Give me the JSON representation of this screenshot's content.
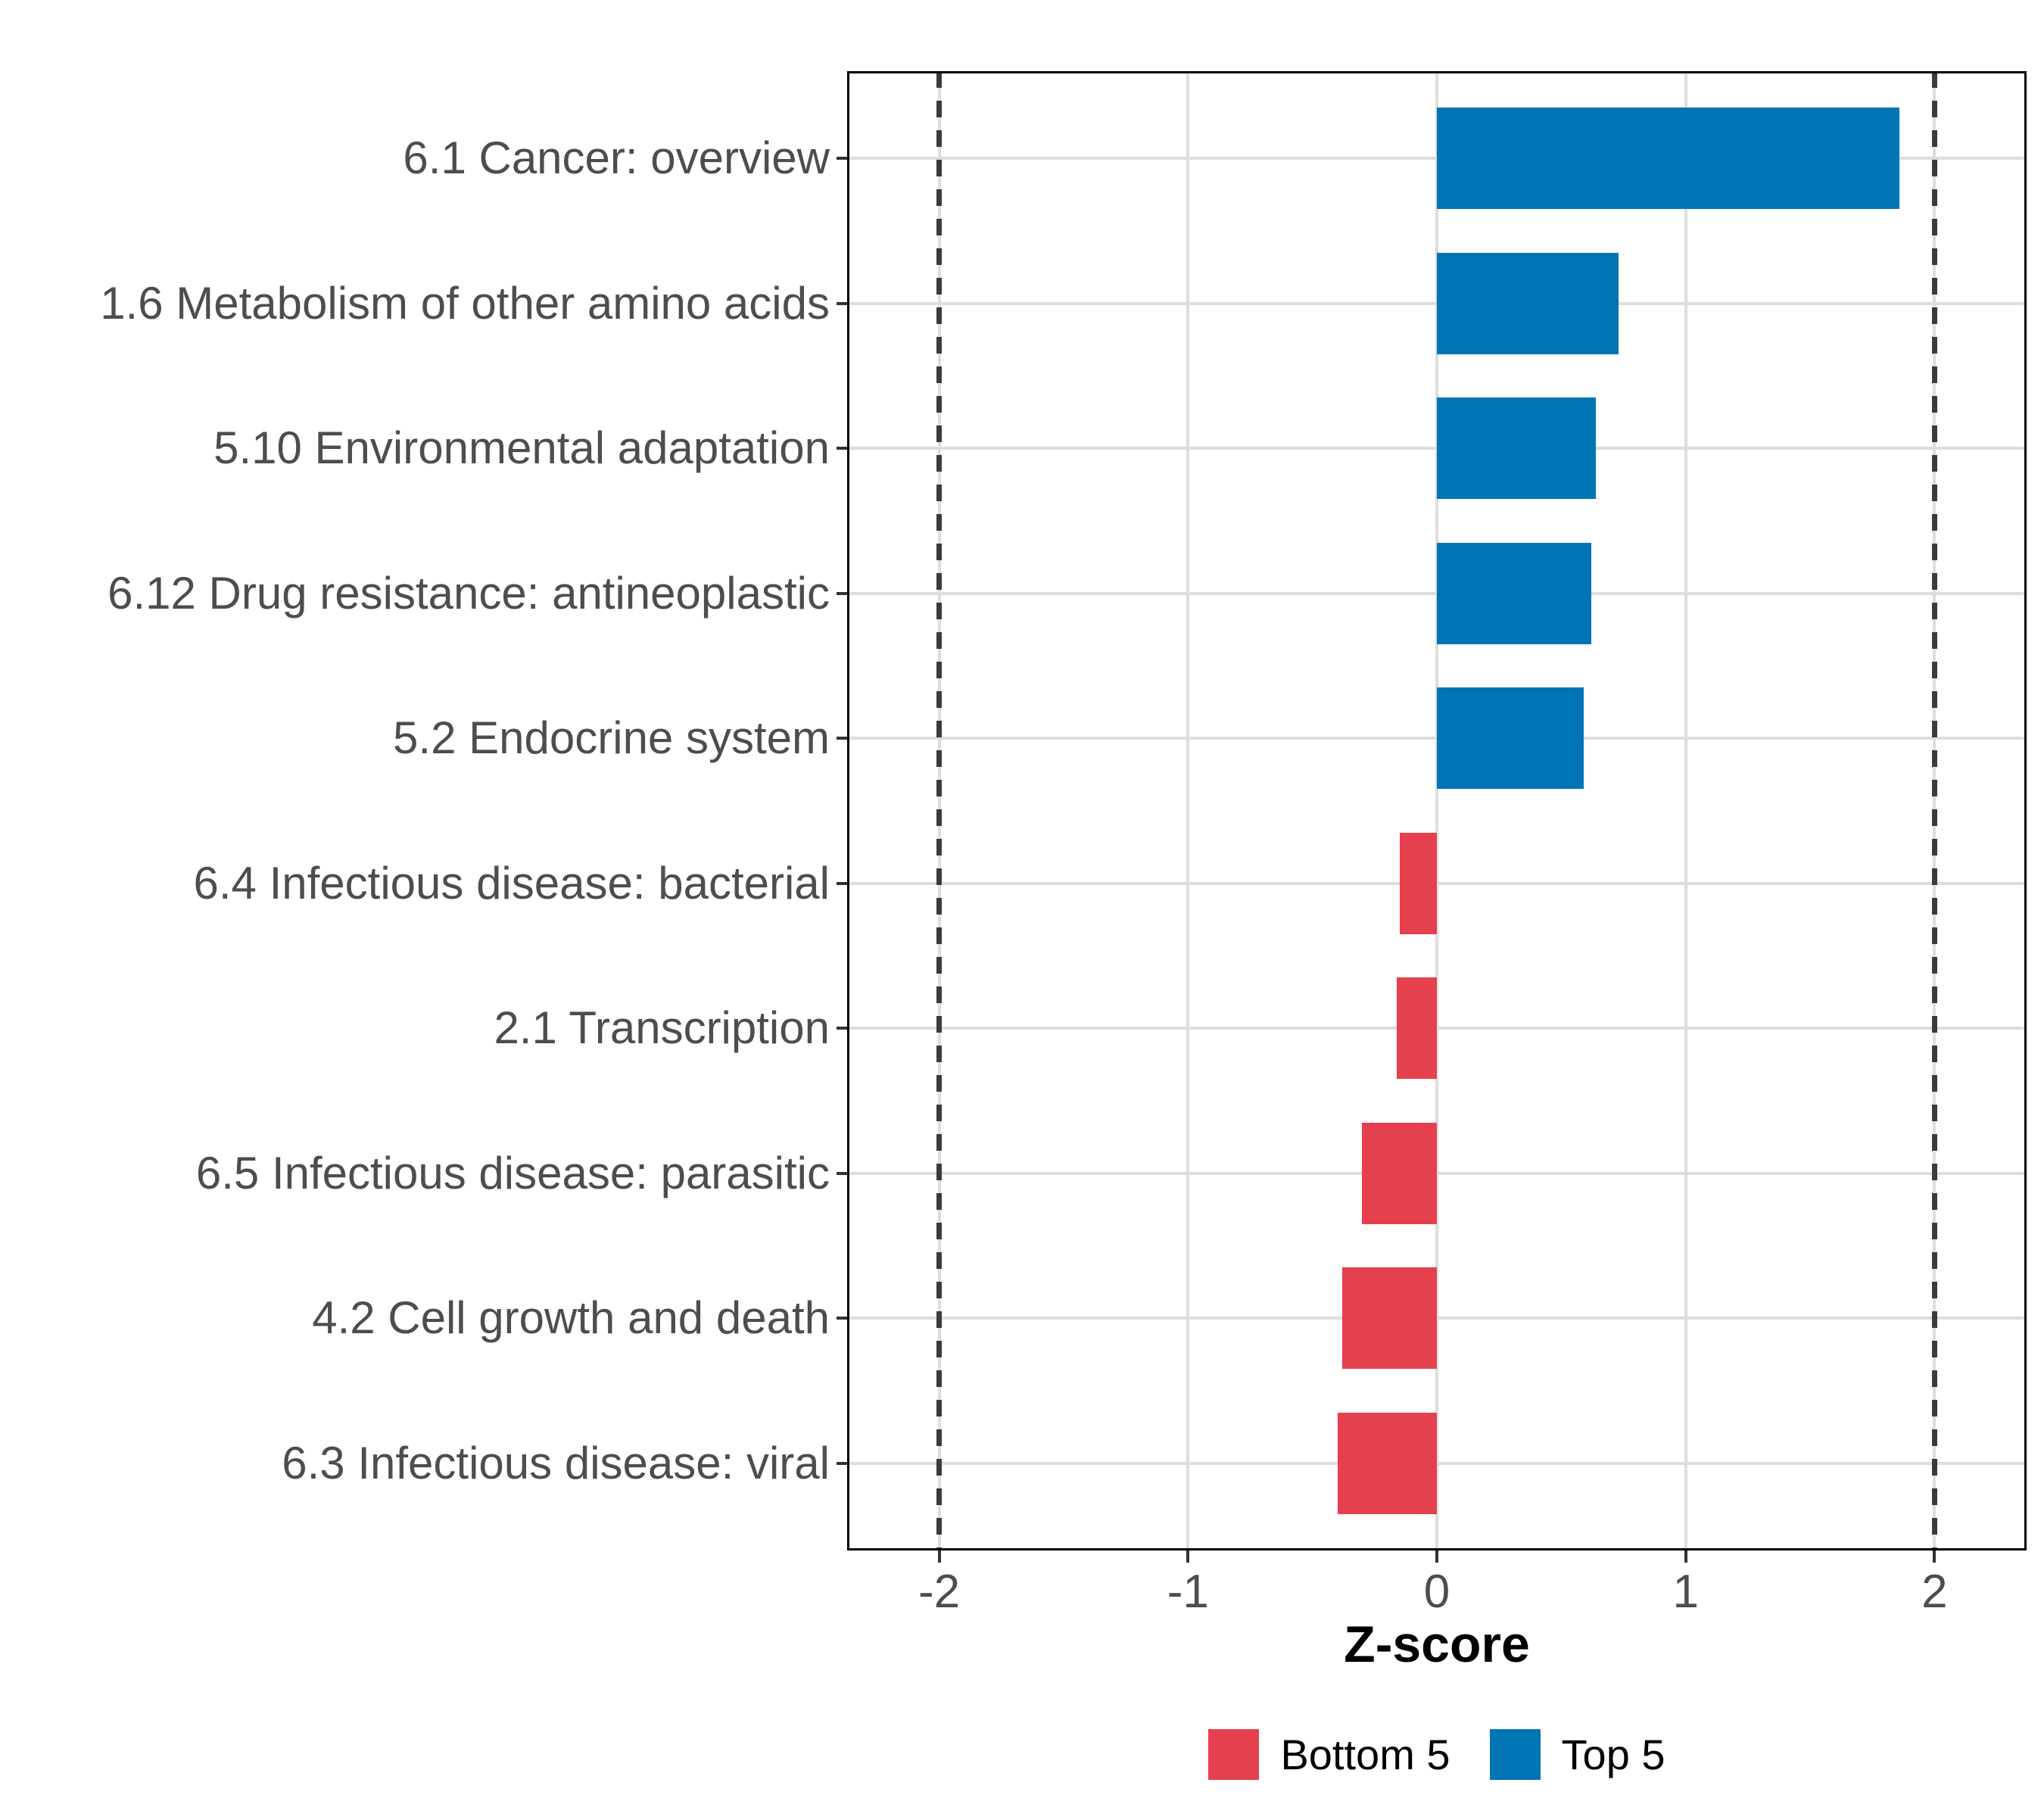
{
  "chart_data": {
    "type": "bar",
    "orientation": "horizontal",
    "title": "",
    "xlabel": "Z-score",
    "ylabel": "",
    "categories": [
      "6.1 Cancer: overview",
      "1.6 Metabolism of other amino acids",
      "5.10 Environmental adaptation",
      "6.12 Drug resistance: antineoplastic",
      "5.2 Endocrine system",
      "6.4 Infectious disease: bacterial",
      "2.1 Transcription",
      "6.5 Infectious disease: parasitic",
      "4.2 Cell growth and death",
      "6.3 Infectious disease: viral"
    ],
    "values": [
      1.86,
      0.73,
      0.64,
      0.62,
      0.59,
      -0.15,
      -0.16,
      -0.3,
      -0.38,
      -0.4
    ],
    "groups": [
      "Top 5",
      "Top 5",
      "Top 5",
      "Top 5",
      "Top 5",
      "Bottom 5",
      "Bottom 5",
      "Bottom 5",
      "Bottom 5",
      "Bottom 5"
    ],
    "group_colors": {
      "Top 5": "#0074B4",
      "Bottom 5": "#E5404E"
    },
    "x_ticks": [
      -2,
      -1,
      0,
      1,
      2
    ],
    "xlim": [
      -2.37,
      2.37
    ],
    "reference_lines": [
      -2,
      2
    ],
    "grid": true,
    "legend": {
      "position": "bottom",
      "entries": [
        {
          "label": "Bottom 5",
          "color": "#E5404E"
        },
        {
          "label": "Top 5",
          "color": "#0074B4"
        }
      ]
    },
    "style_colors": {
      "gridline": "#dddddd",
      "refline": "#3b3b3b",
      "tick": "#333333",
      "axis_text": "#4d4d4d",
      "panel_border": "#000000"
    }
  }
}
